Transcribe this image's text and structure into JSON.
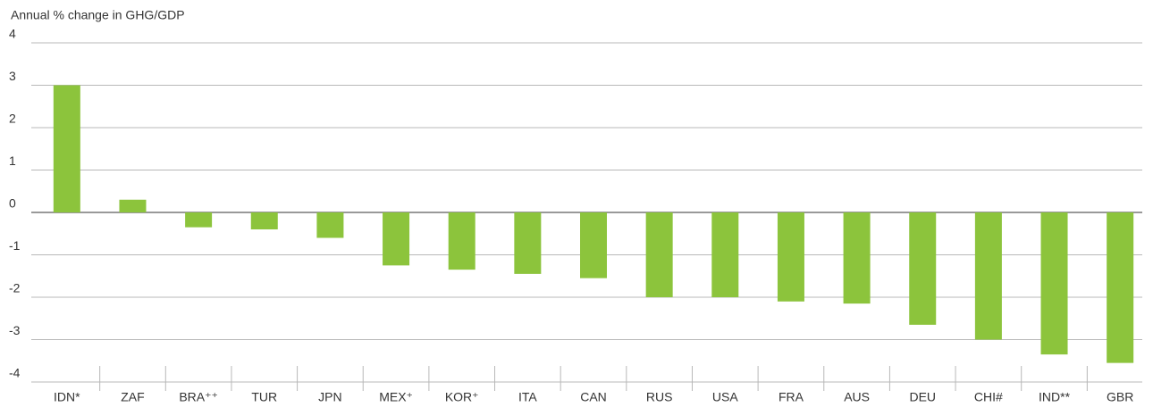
{
  "chart_data": {
    "type": "bar",
    "y_label": "Annual % change in GHG/GDP",
    "categories": [
      "IDN*",
      "ZAF",
      "BRA⁺⁺",
      "TUR",
      "JPN",
      "MEX⁺",
      "KOR⁺",
      "ITA",
      "CAN",
      "RUS",
      "USA",
      "FRA",
      "AUS",
      "DEU",
      "CHI#",
      "IND**",
      "GBR"
    ],
    "values": [
      3.0,
      0.3,
      -0.35,
      -0.4,
      -0.6,
      -1.25,
      -1.35,
      -1.45,
      -1.55,
      -2.0,
      -2.0,
      -2.1,
      -2.15,
      -2.65,
      -3.0,
      -3.35,
      -3.55
    ],
    "color": "#8cc43c",
    "ylim": [
      -4,
      4
    ],
    "yticks": [
      -4,
      -3,
      -2,
      -1,
      0,
      1,
      2,
      3,
      4
    ],
    "grid": true
  }
}
